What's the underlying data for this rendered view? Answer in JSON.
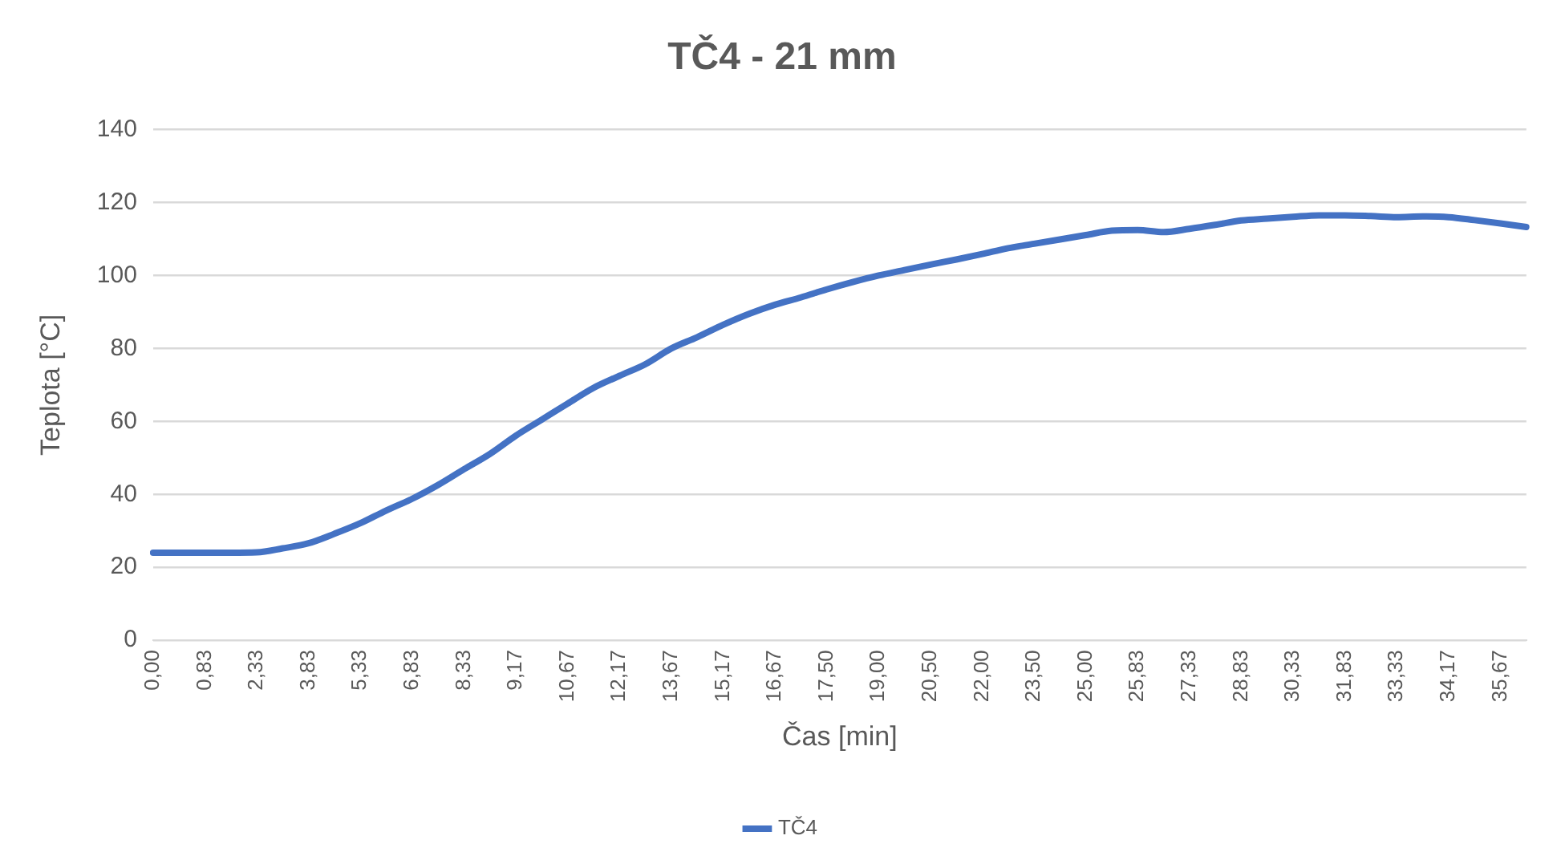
{
  "chart_data": {
    "type": "line",
    "title": "TČ4 - 21 mm",
    "xlabel": "Čas [min]",
    "ylabel": "Teplota [°C]",
    "categories": [
      "0,00",
      null,
      "0,83",
      null,
      "2,33",
      null,
      "3,83",
      null,
      "5,33",
      null,
      "6,83",
      null,
      "8,33",
      null,
      "9,17",
      null,
      "10,67",
      null,
      "12,17",
      null,
      "13,67",
      null,
      "15,17",
      null,
      "16,67",
      null,
      "17,50",
      null,
      "19,00",
      null,
      "20,50",
      null,
      "22,00",
      null,
      "23,50",
      null,
      "25,00",
      null,
      "25,83",
      null,
      "27,33",
      null,
      "28,83",
      null,
      "30,33",
      null,
      "31,83",
      null,
      "33,33",
      null,
      "34,17",
      null,
      "35,67",
      null
    ],
    "series": [
      {
        "name": "TČ4",
        "color": "#4472c4",
        "values": [
          24,
          24,
          24,
          24,
          24.1,
          25.2,
          26.6,
          29.2,
          32.1,
          35.6,
          38.8,
          42.6,
          46.9,
          51.1,
          56.1,
          60.5,
          64.9,
          69.2,
          72.5,
          75.7,
          80,
          83.1,
          86.5,
          89.5,
          92,
          94,
          96.2,
          98.2,
          100,
          101.5,
          103,
          104.4,
          105.9,
          107.5,
          108.7,
          109.9,
          111.1,
          112.3,
          112.5,
          111.9,
          112.8,
          113.9,
          115.1,
          115.6,
          116.1,
          116.5,
          116.5,
          116.3,
          116,
          116.2,
          116,
          115.2,
          114.3,
          113.3
        ]
      }
    ],
    "ylim": [
      0,
      140
    ],
    "yticks": [
      0,
      20,
      40,
      60,
      80,
      100,
      120,
      140
    ],
    "grid": "y",
    "legend": "bottom",
    "marker": "none",
    "line_style": "solid"
  }
}
